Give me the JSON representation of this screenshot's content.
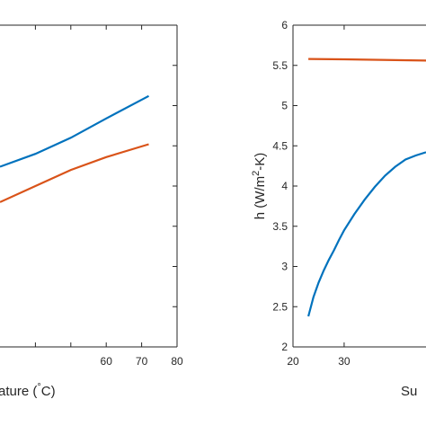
{
  "colors": {
    "blue": "#0072BD",
    "orange": "#D95319",
    "axis": "#262626"
  },
  "chart_data": [
    {
      "type": "line",
      "xlabel_visible": "ature (°C)",
      "xlabel_parts": {
        "prefix": "ature (",
        "degree": "°",
        "suffix": "C)"
      },
      "xlim": [
        30,
        80
      ],
      "ylim": [
        0,
        1
      ],
      "xticks": [
        40,
        50,
        60,
        70,
        80
      ],
      "xtick_labels": [
        "",
        "",
        "60",
        "70",
        "80"
      ],
      "grid": false,
      "series": [
        {
          "color": "#0072BD",
          "points": [
            [
              30,
              0.56
            ],
            [
              40,
              0.6
            ],
            [
              50,
              0.65
            ],
            [
              60,
              0.71
            ],
            [
              72,
              0.78
            ]
          ]
        },
        {
          "color": "#D95319",
          "points": [
            [
              30,
              0.45
            ],
            [
              40,
              0.5
            ],
            [
              50,
              0.55
            ],
            [
              60,
              0.59
            ],
            [
              72,
              0.63
            ]
          ]
        }
      ]
    },
    {
      "type": "line",
      "ylabel": "h (W/m²-K)",
      "ylabel_parts": {
        "base": "h (W/m",
        "sup": "2",
        "tail": "-K)"
      },
      "xlabel_visible": "Su",
      "xlim": [
        20,
        46
      ],
      "ylim": [
        2,
        6
      ],
      "xticks": [
        20,
        30
      ],
      "xtick_labels": [
        "20",
        "30"
      ],
      "yticks": [
        2,
        2.5,
        3,
        3.5,
        4,
        4.5,
        5,
        5.5,
        6
      ],
      "ytick_labels": [
        "2",
        "2.5",
        "3",
        "3.5",
        "4",
        "4.5",
        "5",
        "5.5",
        "6"
      ],
      "grid": false,
      "series": [
        {
          "color": "#D95319",
          "points": [
            [
              23,
              5.58
            ],
            [
              30,
              5.575
            ],
            [
              40,
              5.565
            ],
            [
              46,
              5.56
            ]
          ]
        },
        {
          "color": "#0072BD",
          "points": [
            [
              23,
              2.38
            ],
            [
              24,
              2.62
            ],
            [
              25,
              2.8
            ],
            [
              26,
              2.95
            ],
            [
              27,
              3.08
            ],
            [
              28,
              3.2
            ],
            [
              29,
              3.33
            ],
            [
              30,
              3.45
            ],
            [
              32,
              3.65
            ],
            [
              34,
              3.83
            ],
            [
              36,
              3.99
            ],
            [
              38,
              4.13
            ],
            [
              40,
              4.24
            ],
            [
              42,
              4.33
            ],
            [
              44,
              4.38
            ],
            [
              46,
              4.42
            ]
          ]
        }
      ]
    }
  ]
}
